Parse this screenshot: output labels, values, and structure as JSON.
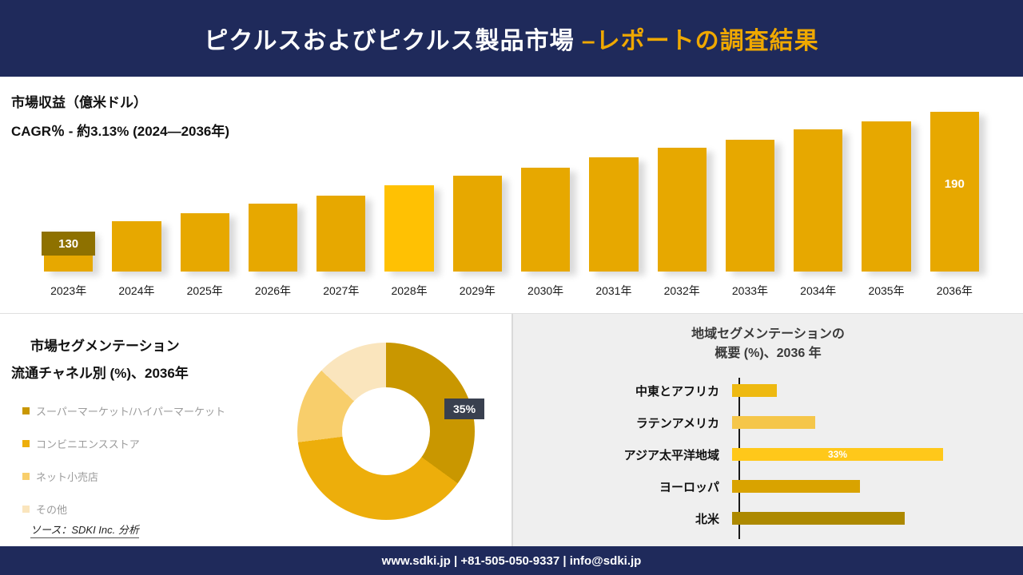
{
  "header": {
    "title_main": "ピクルスおよびピクルス製品市場 ",
    "title_accent": "–レポートの調査結果"
  },
  "revenue": {
    "metric_label": "市場収益（億米ドル）",
    "cagr_line": "CAGR％ - 約3.13% (2024―2036年)"
  },
  "segmentation": {
    "title": "市場セグメンテーション",
    "subtitle": "流通チャネル別 (%)、2036年",
    "source": "ソース：SDKI Inc. 分析"
  },
  "region": {
    "title_line1": "地域セグメンテーションの",
    "title_line2": "概要 (%)、2036 年"
  },
  "footer": {
    "text": "www.sdki.jp | +81-505-050-9337 | info@sdki.jp"
  },
  "chart_data": [
    {
      "id": "revenue_bar",
      "type": "bar",
      "title": "市場収益（億米ドル）",
      "ylabel": "億米ドル",
      "categories": [
        "2023年",
        "2024年",
        "2025年",
        "2026年",
        "2027年",
        "2028年",
        "2029年",
        "2030年",
        "2031年",
        "2032年",
        "2033年",
        "2034年",
        "2035年",
        "2036年"
      ],
      "values": [
        130,
        135,
        139,
        144,
        148,
        153,
        158,
        162,
        167,
        172,
        176,
        181,
        185,
        190
      ],
      "bar_color": "#E7A800",
      "highlight_index": 5,
      "highlight_color": "#FFC103",
      "first_value_label": "130",
      "first_label_bg": "#8E7100",
      "last_value_label": "190",
      "grid": false,
      "legend_position": "none"
    },
    {
      "id": "channel_donut",
      "type": "pie",
      "title": "市場セグメンテーション 流通チャネル別 (%)、2036年",
      "labels": [
        "スーパーマーケット/ハイパーマーケット",
        "コンビニエンスストア",
        "ネット小売店",
        "その他"
      ],
      "values": [
        35,
        38,
        14,
        13
      ],
      "colors": [
        "#C99700",
        "#EDAE0B",
        "#F8CE6B",
        "#FAE5BD"
      ],
      "callout_text": "35%",
      "legend_position": "left"
    },
    {
      "id": "region_hbar",
      "type": "bar",
      "orientation": "horizontal",
      "title": "地域セグメンテーションの概要 (%)、2036 年",
      "categories": [
        "中東とアフリカ",
        "ラテンアメリカ",
        "アジア太平洋地域",
        "ヨーロッパ",
        "北米"
      ],
      "values": [
        7,
        13,
        33,
        20,
        27
      ],
      "colors": [
        "#EEB911",
        "#F5C64A",
        "#FFC81A",
        "#D9A300",
        "#AD8900"
      ],
      "data_label_category": "アジア太平洋地域",
      "data_label_text": "33%",
      "grid": false,
      "legend_position": "none"
    }
  ]
}
